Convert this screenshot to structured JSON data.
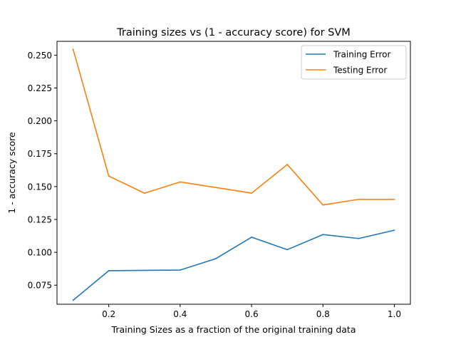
{
  "chart_data": {
    "type": "line",
    "title": "Training sizes vs (1 - accuracy score) for SVM",
    "xlabel": "Training Sizes as a fraction of the original training data",
    "ylabel": "1 - accuracy score",
    "xlim": [
      0.055,
      1.045
    ],
    "ylim": [
      0.0605,
      0.2605
    ],
    "xticks": [
      0.2,
      0.4,
      0.6,
      0.8,
      1.0
    ],
    "xtick_labels": [
      "0.2",
      "0.4",
      "0.6",
      "0.8",
      "1.0"
    ],
    "yticks": [
      0.075,
      0.1,
      0.125,
      0.15,
      0.175,
      0.2,
      0.225,
      0.25
    ],
    "ytick_labels": [
      "0.075",
      "0.100",
      "0.125",
      "0.150",
      "0.175",
      "0.200",
      "0.225",
      "0.250"
    ],
    "grid": false,
    "legend_position": "top-right",
    "x": [
      0.1,
      0.2,
      0.3,
      0.4,
      0.5,
      0.6,
      0.7,
      0.8,
      0.9,
      1.0
    ],
    "series": [
      {
        "name": "Training Error",
        "color": "#1f77b4",
        "values": [
          0.0635,
          0.086,
          0.0863,
          0.0865,
          0.0952,
          0.1115,
          0.102,
          0.1135,
          0.1105,
          0.1168
        ]
      },
      {
        "name": "Testing Error",
        "color": "#ff7f0e",
        "values": [
          0.2545,
          0.158,
          0.145,
          0.1535,
          0.1493,
          0.145,
          0.1668,
          0.136,
          0.1403,
          0.1403
        ]
      }
    ]
  }
}
